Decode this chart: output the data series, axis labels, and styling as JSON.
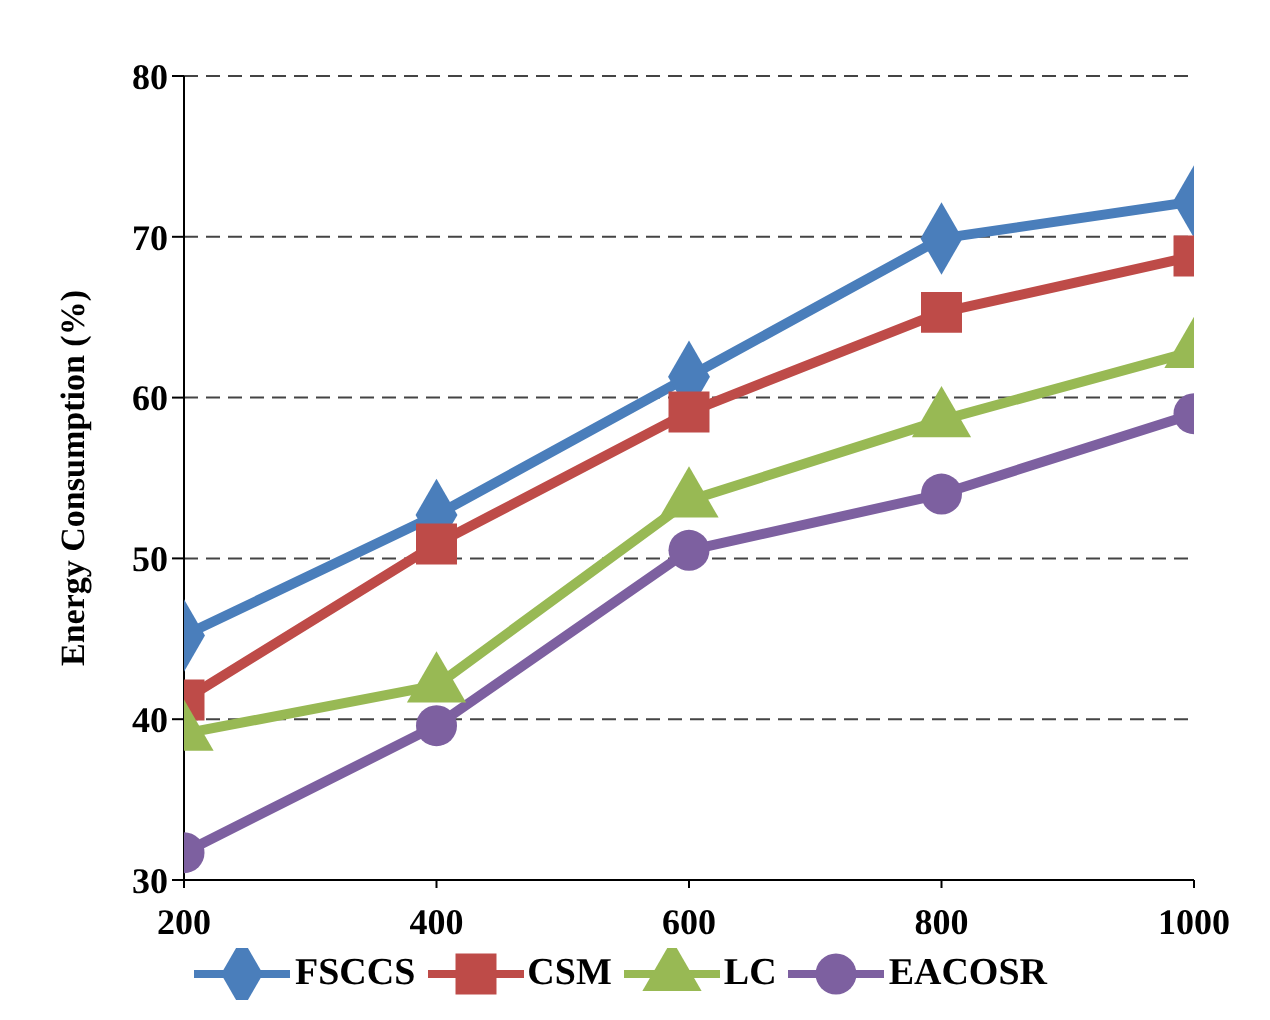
{
  "chart_data": {
    "type": "line",
    "ylabel": "Energy Consumption (%)",
    "x": [
      200,
      400,
      600,
      800,
      1000
    ],
    "xlim": [
      200,
      1000
    ],
    "xticks": [
      200,
      400,
      600,
      800,
      1000
    ],
    "ylim": [
      30,
      80
    ],
    "yticks": [
      30,
      40,
      50,
      60,
      70,
      80
    ],
    "grid": "y",
    "legend": "bottom",
    "line_style": "solid",
    "series": [
      {
        "name": "FSCCS",
        "color": "#4a7ebb",
        "marker": "diamond",
        "values": [
          45.2,
          52.7,
          61.3,
          69.9,
          72.2
        ]
      },
      {
        "name": "CSM",
        "color": "#be4b48",
        "marker": "square",
        "values": [
          41.2,
          50.9,
          59.1,
          65.3,
          68.8
        ]
      },
      {
        "name": "LC",
        "color": "#98b954",
        "marker": "triangle",
        "values": [
          39.1,
          42.1,
          53.6,
          58.6,
          62.9
        ]
      },
      {
        "name": "EACOSR",
        "color": "#7d60a0",
        "marker": "circle",
        "values": [
          31.7,
          39.6,
          50.5,
          54.0,
          59.0
        ]
      }
    ]
  }
}
